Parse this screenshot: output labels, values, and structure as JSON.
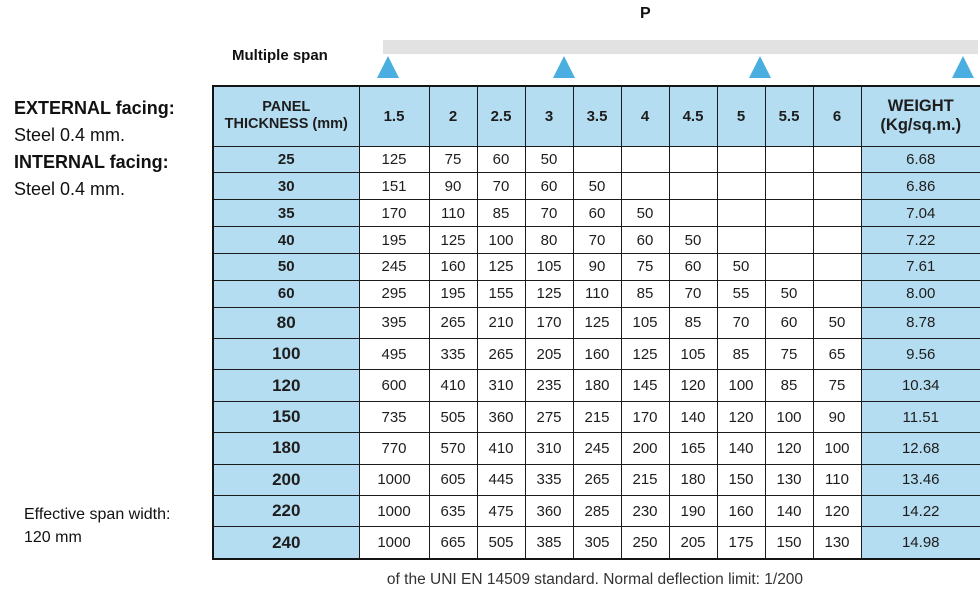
{
  "diagram": {
    "load_label": "P",
    "span_label": "Multiple span",
    "support_count": 4
  },
  "panel_info": {
    "lines": [
      {
        "text": "EXTERNAL facing:",
        "bold": true
      },
      {
        "text": "Steel 0.4 mm.",
        "bold": false
      },
      {
        "text": "INTERNAL facing:",
        "bold": true
      },
      {
        "text": "Steel 0.4 mm.",
        "bold": false
      }
    ]
  },
  "table": {
    "corner_label": [
      "PANEL",
      "THICKNESS (mm)"
    ],
    "span_columns": [
      "1.5",
      "2",
      "2.5",
      "3",
      "3.5",
      "4",
      "4.5",
      "5",
      "5.5",
      "6"
    ],
    "weight_label": [
      "WEIGHT",
      "(Kg/sq.m.)"
    ],
    "rows": [
      {
        "thickness": "25",
        "values": [
          "125",
          "75",
          "60",
          "50",
          "",
          "",
          "",
          "",
          "",
          ""
        ],
        "weight": "6.68"
      },
      {
        "thickness": "30",
        "values": [
          "151",
          "90",
          "70",
          "60",
          "50",
          "",
          "",
          "",
          "",
          ""
        ],
        "weight": "6.86"
      },
      {
        "thickness": "35",
        "values": [
          "170",
          "110",
          "85",
          "70",
          "60",
          "50",
          "",
          "",
          "",
          ""
        ],
        "weight": "7.04"
      },
      {
        "thickness": "40",
        "values": [
          "195",
          "125",
          "100",
          "80",
          "70",
          "60",
          "50",
          "",
          "",
          ""
        ],
        "weight": "7.22"
      },
      {
        "thickness": "50",
        "values": [
          "245",
          "160",
          "125",
          "105",
          "90",
          "75",
          "60",
          "50",
          "",
          ""
        ],
        "weight": "7.61"
      },
      {
        "thickness": "60",
        "values": [
          "295",
          "195",
          "155",
          "125",
          "110",
          "85",
          "70",
          "55",
          "50",
          ""
        ],
        "weight": "8.00"
      },
      {
        "thickness": "80",
        "values": [
          "395",
          "265",
          "210",
          "170",
          "125",
          "105",
          "85",
          "70",
          "60",
          "50"
        ],
        "weight": "8.78"
      },
      {
        "thickness": "100",
        "values": [
          "495",
          "335",
          "265",
          "205",
          "160",
          "125",
          "105",
          "85",
          "75",
          "65"
        ],
        "weight": "9.56"
      },
      {
        "thickness": "120",
        "values": [
          "600",
          "410",
          "310",
          "235",
          "180",
          "145",
          "120",
          "100",
          "85",
          "75"
        ],
        "weight": "10.34"
      },
      {
        "thickness": "150",
        "values": [
          "735",
          "505",
          "360",
          "275",
          "215",
          "170",
          "140",
          "120",
          "100",
          "90"
        ],
        "weight": "11.51"
      },
      {
        "thickness": "180",
        "values": [
          "770",
          "570",
          "410",
          "310",
          "245",
          "200",
          "165",
          "140",
          "120",
          "100"
        ],
        "weight": "12.68"
      },
      {
        "thickness": "200",
        "values": [
          "1000",
          "605",
          "445",
          "335",
          "265",
          "215",
          "180",
          "150",
          "130",
          "110"
        ],
        "weight": "13.46"
      },
      {
        "thickness": "220",
        "values": [
          "1000",
          "635",
          "475",
          "360",
          "285",
          "230",
          "190",
          "160",
          "140",
          "120"
        ],
        "weight": "14.22"
      },
      {
        "thickness": "240",
        "values": [
          "1000",
          "665",
          "505",
          "385",
          "305",
          "250",
          "205",
          "175",
          "150",
          "130"
        ],
        "weight": "14.98"
      }
    ]
  },
  "notes": {
    "effective_span": [
      "Effective span width:",
      "120 mm"
    ],
    "caption": "of the UNI EN 14509 standard. Normal deflection limit: 1/200"
  },
  "colors": {
    "cell_blue": "#b5ddf1",
    "support_blue": "#4aafe0",
    "beam_gray": "#e2e2e2",
    "border": "#1b1b1b"
  }
}
